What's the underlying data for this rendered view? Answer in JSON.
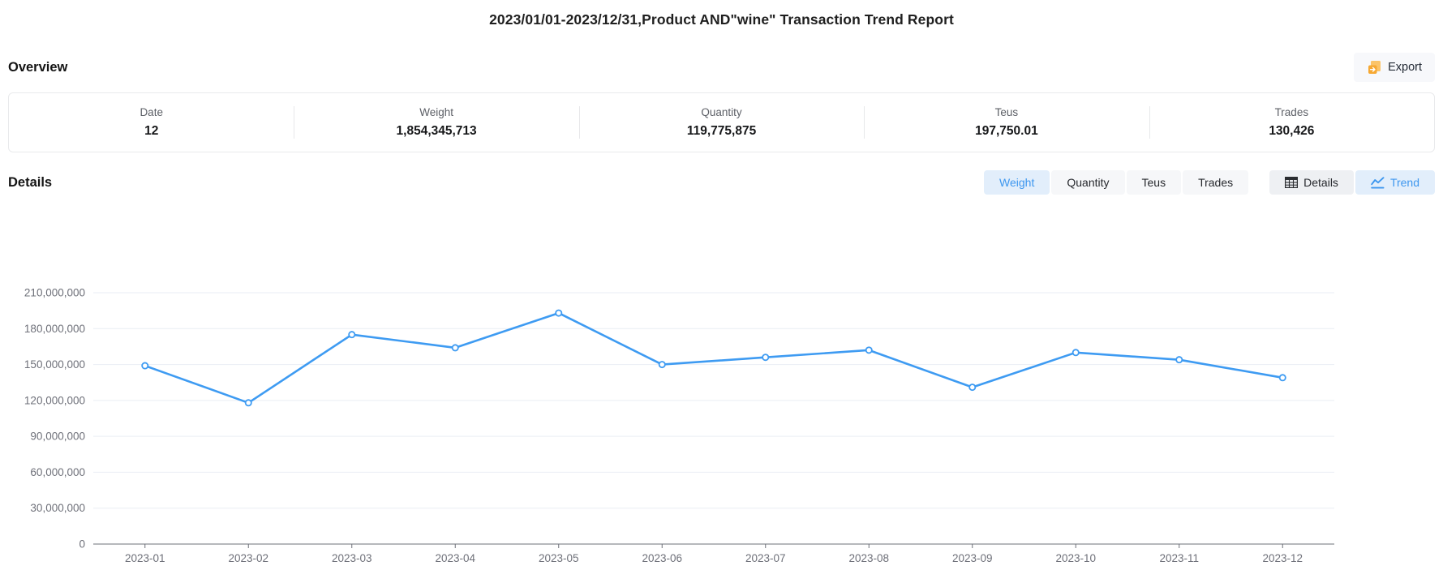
{
  "page": {
    "title": "2023/01/01-2023/12/31,Product AND\"wine\" Transaction Trend Report"
  },
  "overview": {
    "heading": "Overview",
    "export_label": "Export",
    "stats": [
      {
        "label": "Date",
        "value": "12"
      },
      {
        "label": "Weight",
        "value": "1,854,345,713"
      },
      {
        "label": "Quantity",
        "value": "119,775,875"
      },
      {
        "label": "Teus",
        "value": "197,750.01"
      },
      {
        "label": "Trades",
        "value": "130,426"
      }
    ]
  },
  "details": {
    "heading": "Details",
    "metric_tabs": [
      {
        "label": "Weight",
        "active": true
      },
      {
        "label": "Quantity",
        "active": false
      },
      {
        "label": "Teus",
        "active": false
      },
      {
        "label": "Trades",
        "active": false
      }
    ],
    "view_tabs": [
      {
        "label": "Details",
        "icon": "table-icon",
        "active": false
      },
      {
        "label": "Trend",
        "icon": "line-chart-icon",
        "active": true
      }
    ]
  },
  "colors": {
    "accent": "#3d97ef",
    "accent_bg": "#e2eefb",
    "export_icon_orange": "#f6a832",
    "axis_text": "#6e7079",
    "gridline": "#e9edf4"
  },
  "chart_data": {
    "type": "line",
    "title": "",
    "xlabel": "",
    "ylabel": "",
    "categories": [
      "2023-01",
      "2023-02",
      "2023-03",
      "2023-04",
      "2023-05",
      "2023-06",
      "2023-07",
      "2023-08",
      "2023-09",
      "2023-10",
      "2023-11",
      "2023-12"
    ],
    "series": [
      {
        "name": "Weight",
        "values": [
          149000000,
          118000000,
          175000000,
          164000000,
          193000000,
          150000000,
          156000000,
          162000000,
          131000000,
          160000000,
          154000000,
          139000000
        ]
      }
    ],
    "ylim": [
      0,
      210000000
    ],
    "ytick_interval": 30000000,
    "grid": true,
    "legend_position": "none",
    "line_color": "#3e9bf2",
    "marker": "hollow-circle"
  }
}
